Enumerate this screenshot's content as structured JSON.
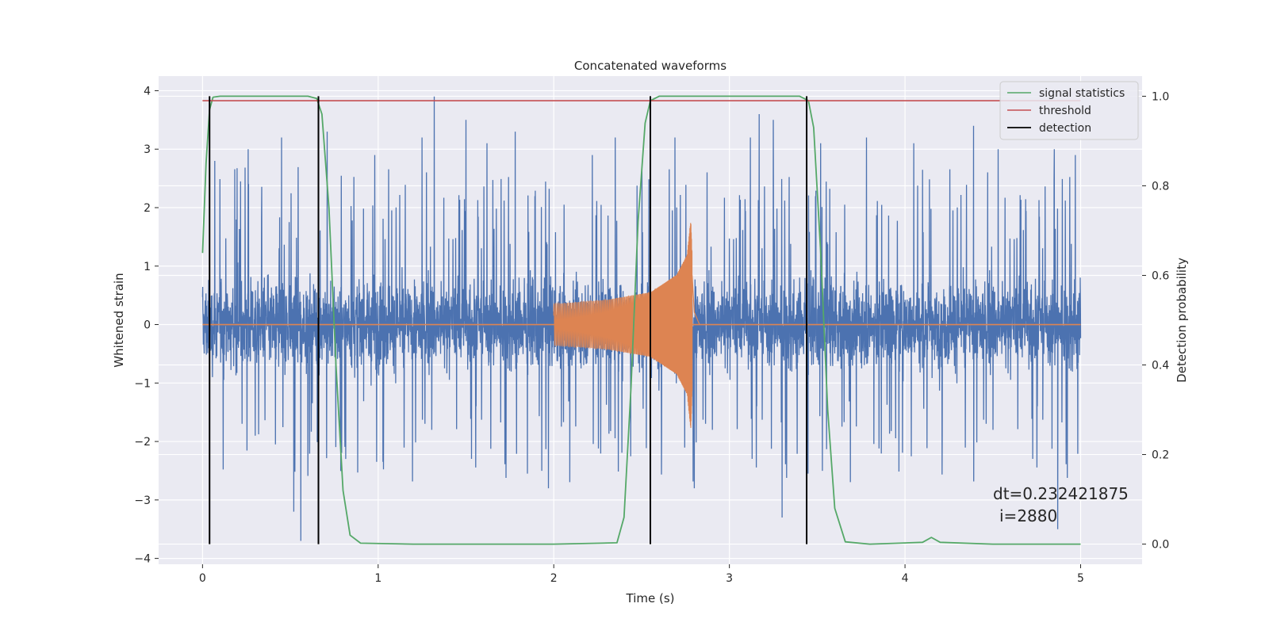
{
  "chart_data": {
    "type": "line",
    "title": "Concatenated waveforms",
    "xlabel": "Time (s)",
    "ylabel": "Whitened strain",
    "ylabel_right": "Detection probability",
    "xlim": [
      -0.25,
      5.35
    ],
    "ylim": [
      -4.1,
      4.25
    ],
    "ylim_right": [
      -0.045,
      1.045
    ],
    "xticks": [
      0,
      1,
      2,
      3,
      4,
      5
    ],
    "yticks": [
      -4,
      -3,
      -2,
      -1,
      0,
      1,
      2,
      3,
      4
    ],
    "yticks_right": [
      0.0,
      0.2,
      0.4,
      0.6,
      0.8,
      1.0
    ],
    "ytick_labels": [
      "−4",
      "−3",
      "−2",
      "−1",
      "0",
      "1",
      "2",
      "3",
      "4"
    ],
    "yticks_right_labels": [
      "0.0",
      "0.2",
      "0.4",
      "0.6",
      "0.8",
      "1.0"
    ],
    "grid": true,
    "legend_position": "top-right",
    "legend": [
      "signal statistics",
      "threshold",
      "detection"
    ],
    "annotation": [
      "dt=0.232421875",
      "i=2880"
    ],
    "series": [
      {
        "role": "noise strain",
        "color": "#4c72b0",
        "x_range": [
          0,
          5
        ],
        "typical_range": [
          -1.1,
          1.1
        ],
        "peaks": [
          {
            "x": 0.07,
            "y": 2.8
          },
          {
            "x": 0.26,
            "y": 3.0
          },
          {
            "x": 0.45,
            "y": 3.2
          },
          {
            "x": 0.52,
            "y": -3.2
          },
          {
            "x": 0.56,
            "y": -3.7
          },
          {
            "x": 0.71,
            "y": 3.3
          },
          {
            "x": 0.98,
            "y": 2.9
          },
          {
            "x": 1.25,
            "y": 3.2
          },
          {
            "x": 1.32,
            "y": 3.9
          },
          {
            "x": 1.5,
            "y": 3.5
          },
          {
            "x": 1.62,
            "y": 3.1
          },
          {
            "x": 1.78,
            "y": 3.3
          },
          {
            "x": 1.97,
            "y": -2.8
          },
          {
            "x": 2.22,
            "y": 2.9
          },
          {
            "x": 2.35,
            "y": 3.2
          },
          {
            "x": 2.69,
            "y": 3.2
          },
          {
            "x": 2.8,
            "y": -2.8
          },
          {
            "x": 3.12,
            "y": 3.2
          },
          {
            "x": 3.17,
            "y": 3.6
          },
          {
            "x": 3.25,
            "y": 3.5
          },
          {
            "x": 3.3,
            "y": -3.3
          },
          {
            "x": 3.52,
            "y": 3.1
          },
          {
            "x": 3.78,
            "y": 3.2
          },
          {
            "x": 4.05,
            "y": 3.1
          },
          {
            "x": 4.39,
            "y": 3.4
          },
          {
            "x": 4.53,
            "y": 3.0
          },
          {
            "x": 4.85,
            "y": 3.0
          },
          {
            "x": 4.97,
            "y": 2.9
          },
          {
            "x": 4.87,
            "y": -3.5
          }
        ]
      },
      {
        "role": "injected chirp",
        "color": "#dd8452",
        "x_range": [
          2.0,
          2.83
        ],
        "envelope": [
          {
            "x": 2.0,
            "y": 0.35
          },
          {
            "x": 2.3,
            "y": 0.42
          },
          {
            "x": 2.55,
            "y": 0.55
          },
          {
            "x": 2.7,
            "y": 0.85
          },
          {
            "x": 2.76,
            "y": 1.2
          },
          {
            "x": 2.78,
            "y": 1.8
          },
          {
            "x": 2.8,
            "y": 0.3
          },
          {
            "x": 2.83,
            "y": 0.0
          }
        ]
      },
      {
        "name": "signal statistics",
        "color": "#55a868",
        "axis": "right",
        "x": [
          0.0,
          0.02,
          0.04,
          0.06,
          0.1,
          0.3,
          0.6,
          0.65,
          0.68,
          0.72,
          0.76,
          0.8,
          0.84,
          0.9,
          1.2,
          2.0,
          2.36,
          2.4,
          2.44,
          2.48,
          2.52,
          2.55,
          2.6,
          3.0,
          3.4,
          3.45,
          3.48,
          3.52,
          3.56,
          3.6,
          3.66,
          3.8,
          4.1,
          4.15,
          4.2,
          4.5,
          5.0
        ],
        "y": [
          0.65,
          0.85,
          0.97,
          0.998,
          1.0,
          1.0,
          1.0,
          0.995,
          0.96,
          0.75,
          0.4,
          0.12,
          0.02,
          0.002,
          0.0,
          0.0,
          0.003,
          0.06,
          0.35,
          0.72,
          0.94,
          0.99,
          1.0,
          1.0,
          1.0,
          0.99,
          0.93,
          0.65,
          0.3,
          0.08,
          0.005,
          0.0,
          0.004,
          0.015,
          0.004,
          0.0,
          0.0
        ]
      },
      {
        "name": "threshold",
        "color": "#c44e52",
        "axis": "right",
        "x": [
          0.0,
          5.0
        ],
        "y": [
          0.99,
          0.99
        ]
      },
      {
        "name": "detection",
        "color": "#000000",
        "axis": "right",
        "type": "vlines",
        "x": [
          0.04,
          0.66,
          2.55,
          3.44
        ],
        "y_range": [
          0.0,
          1.0
        ]
      }
    ]
  }
}
